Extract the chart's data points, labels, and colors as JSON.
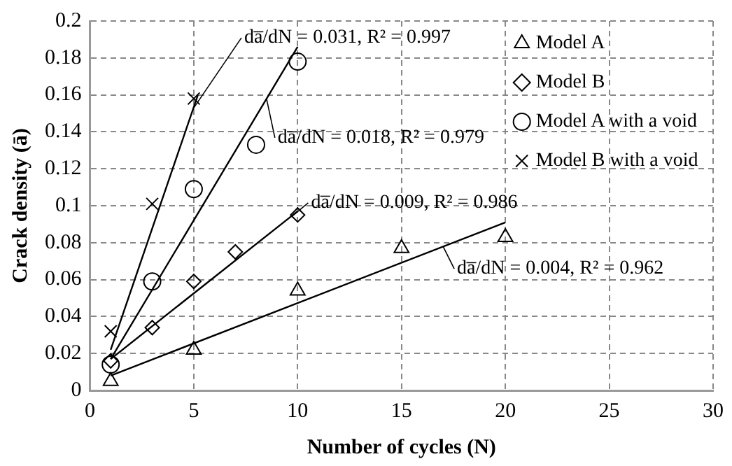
{
  "chart_data": {
    "type": "scatter",
    "xlabel": "Number of cycles (N)",
    "ylabel": "Crack density (ā)",
    "xlim": [
      0,
      30
    ],
    "xticks": [
      0,
      5,
      10,
      15,
      20,
      25,
      30
    ],
    "ylim": [
      0,
      0.2
    ],
    "yticks": [
      0,
      0.02,
      0.04,
      0.06,
      0.08,
      0.1,
      0.12,
      0.14,
      0.16,
      0.18,
      0.2
    ],
    "grid": true,
    "legend": "top right",
    "series": [
      {
        "name": "Model A",
        "color": "#000000",
        "marker": "triangle",
        "x": [
          1,
          5,
          10,
          15,
          20
        ],
        "values": [
          0.005,
          0.022,
          0.054,
          0.077,
          0.083
        ]
      },
      {
        "name": "Model B",
        "color": "#000000",
        "marker": "diamond",
        "x": [
          1,
          3,
          5,
          7,
          10
        ],
        "values": [
          0.016,
          0.034,
          0.059,
          0.075,
          0.095
        ]
      },
      {
        "name": "Model A with a void",
        "color": "#000000",
        "marker": "circle",
        "x": [
          1,
          3,
          5,
          8,
          10
        ],
        "values": [
          0.014,
          0.059,
          0.109,
          0.133,
          0.178
        ]
      },
      {
        "name": "Model B with a void",
        "color": "#000000",
        "marker": "cross",
        "x": [
          1,
          3,
          5
        ],
        "values": [
          0.032,
          0.101,
          0.158
        ]
      },
      {
        "type": "line",
        "color": "#000000",
        "x": [
          1,
          20
        ],
        "values": [
          0.008,
          0.091
        ]
      },
      {
        "type": "line",
        "color": "#000000",
        "x": [
          1,
          10
        ],
        "values": [
          0.017,
          0.097
        ]
      },
      {
        "type": "line",
        "color": "#000000",
        "x": [
          1,
          10
        ],
        "values": [
          0.017,
          0.186
        ]
      },
      {
        "type": "line",
        "color": "#000000",
        "x": [
          1,
          5.2
        ],
        "values": [
          0.022,
          0.16
        ]
      }
    ],
    "annotations": [
      {
        "text": "da̅/dN = 0.031, R² = 0.997",
        "x": 5,
        "y": 0.153
      },
      {
        "text": "da̅/dN = 0.018, R² = 0.979",
        "x": 8.5,
        "y": 0.158
      },
      {
        "text": "da̅/dN = 0.009, R² = 0.986",
        "x": 9.7,
        "y": 0.094
      },
      {
        "text": "da̅/dN = 0.004, R² = 0.962",
        "x": 17,
        "y": 0.078
      }
    ]
  }
}
